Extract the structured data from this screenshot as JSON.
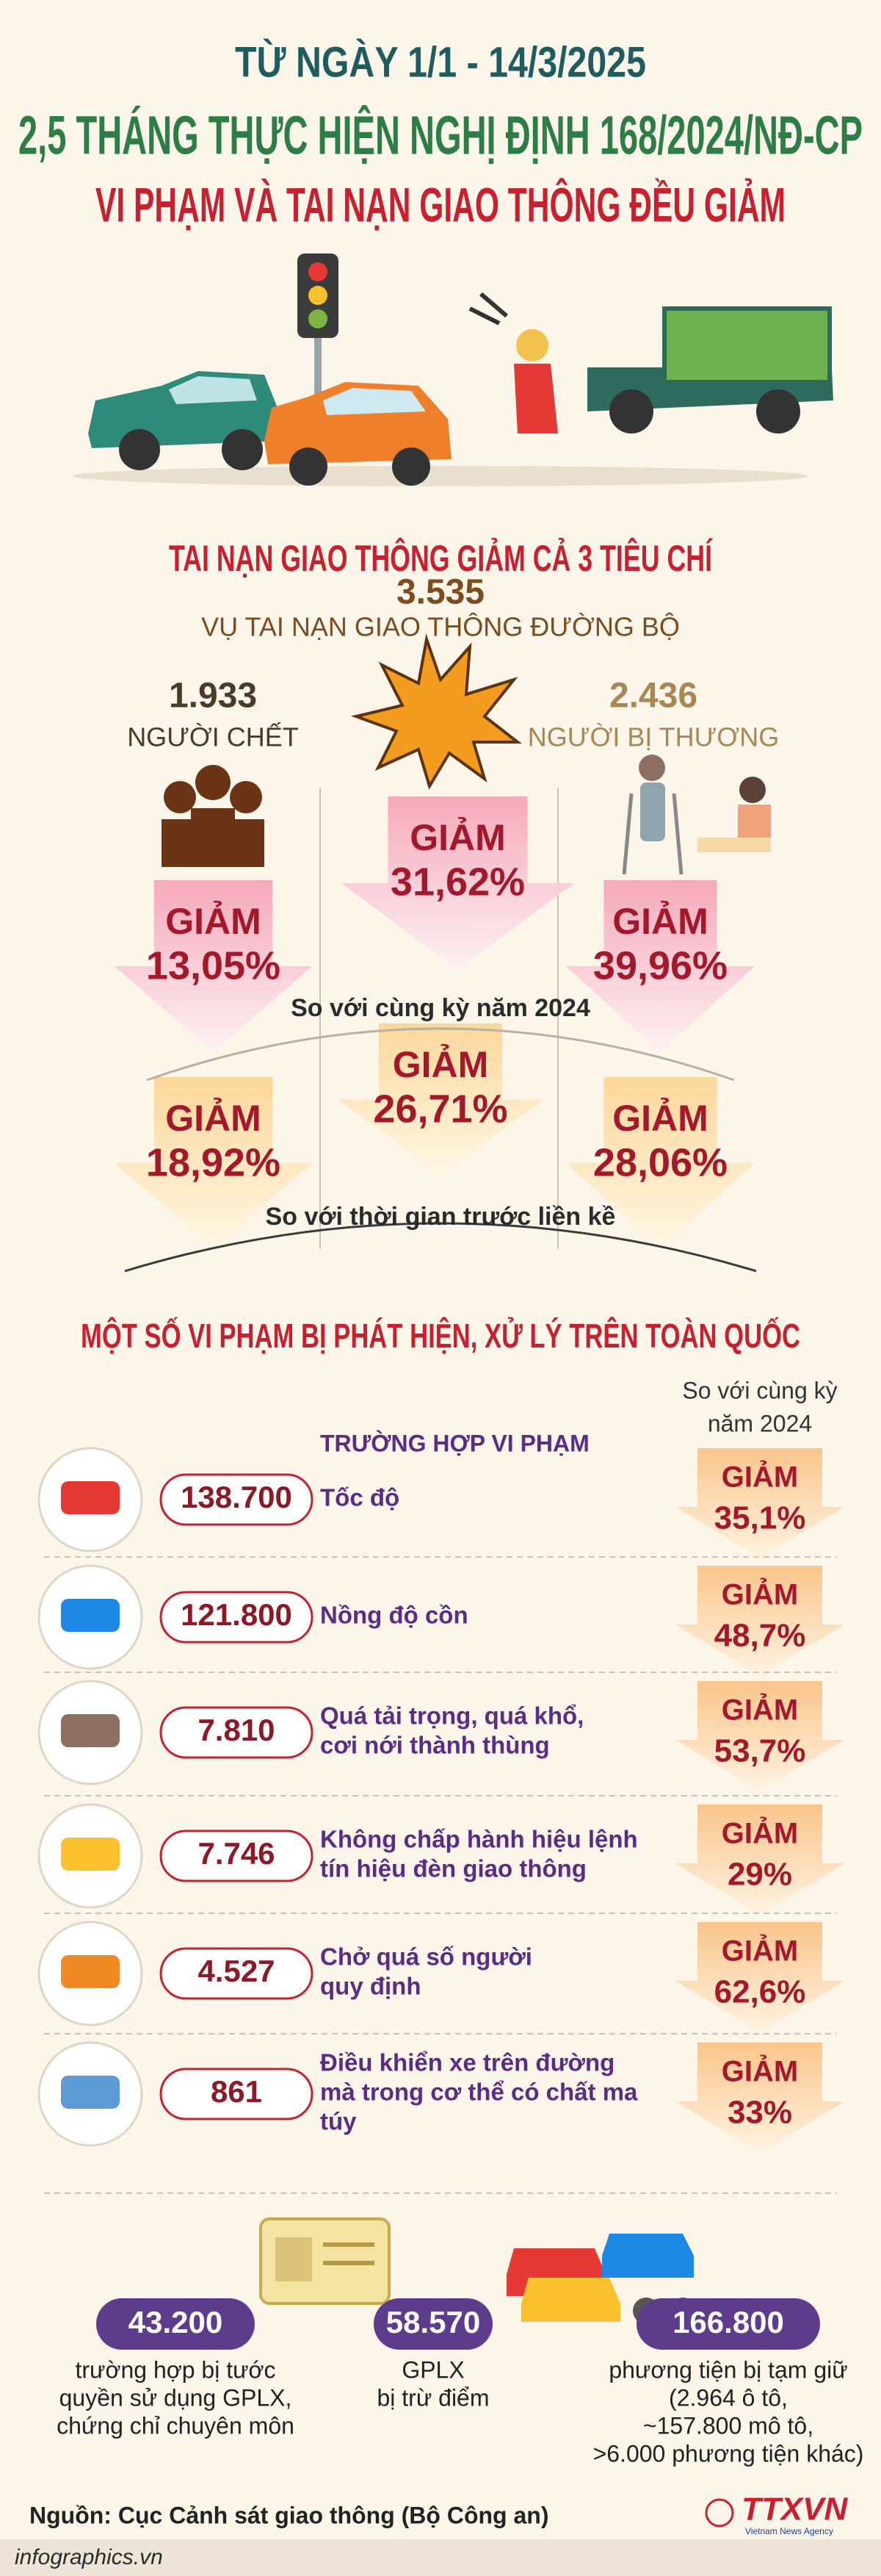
{
  "header": {
    "date": "TỪ NGÀY 1/1 - 14/3/2025",
    "title": "2,5 THÁNG THỰC HIỆN NGHỊ ĐỊNH 168/2024/NĐ-CP",
    "subtitle": "VI PHẠM VÀ TAI NẠN GIAO THÔNG ĐỀU GIẢM"
  },
  "accidents": {
    "heading": "TAI NẠN GIAO THÔNG GIẢM CẢ 3 TIÊU CHÍ",
    "total": {
      "value": "3.535",
      "label": "VỤ TAI NẠN GIAO THÔNG ĐƯỜNG BỘ",
      "yoy": {
        "label": "GIẢM",
        "value": "31,62%"
      },
      "prior": {
        "label": "GIẢM",
        "value": "26,71%"
      }
    },
    "deaths": {
      "value": "1.933",
      "label": "NGƯỜI CHẾT",
      "yoy": {
        "label": "GIẢM",
        "value": "13,05%"
      },
      "prior": {
        "label": "GIẢM",
        "value": "18,92%"
      }
    },
    "injuries": {
      "value": "2.436",
      "label": "NGƯỜI BỊ THƯƠNG",
      "yoy": {
        "label": "GIẢM",
        "value": "39,96%"
      },
      "prior": {
        "label": "GIẢM",
        "value": "28,06%"
      }
    },
    "yoy_label": "So với cùng kỳ năm 2024",
    "prior_label": "So với thời gian trước liền kề"
  },
  "violations": {
    "heading": "MỘT SỐ VI PHẠM BỊ PHÁT HIỆN, XỬ LÝ TRÊN TOÀN QUỐC",
    "column_header": "TRƯỜNG HỢP VI PHẠM",
    "compare_header": [
      "So với cùng kỳ",
      "năm 2024"
    ],
    "rows": [
      {
        "count": "138.700",
        "name": [
          "Tốc độ"
        ],
        "change": {
          "label": "GIẢM",
          "value": "35,1%"
        }
      },
      {
        "count": "121.800",
        "name": [
          "Nồng độ cồn"
        ],
        "change": {
          "label": "GIẢM",
          "value": "48,7%"
        }
      },
      {
        "count": "7.810",
        "name": [
          "Quá tải trọng, quá khổ,",
          "cơi nới thành thùng"
        ],
        "change": {
          "label": "GIẢM",
          "value": "53,7%"
        }
      },
      {
        "count": "7.746",
        "name": [
          "Không chấp hành hiệu lệnh",
          "tín hiệu đèn giao thông"
        ],
        "change": {
          "label": "GIẢM",
          "value": "29%"
        }
      },
      {
        "count": "4.527",
        "name": [
          "Chở quá số người",
          "quy định"
        ],
        "change": {
          "label": "GIẢM",
          "value": "62,6%"
        }
      },
      {
        "count": "861",
        "name": [
          "Điều khiển xe trên đường",
          "mà trong cơ thể có chất ma",
          "túy"
        ],
        "change": {
          "label": "GIẢM",
          "value": "33%"
        }
      }
    ]
  },
  "penalties": {
    "items": [
      {
        "count": "43.200",
        "lines": [
          "trường hợp bị tước",
          "quyền sử dụng GPLX,",
          "chứng chỉ chuyên môn"
        ]
      },
      {
        "count": "58.570",
        "lines": [
          "GPLX",
          "bị trừ điểm"
        ]
      },
      {
        "count": "166.800",
        "lines": [
          "phương tiện bị tạm giữ",
          "(2.964 ô tô,",
          "~157.800 mô tô,",
          ">6.000 phương tiện khác)"
        ]
      }
    ]
  },
  "footer": {
    "source": "Nguồn: Cục Cảnh sát giao thông (Bộ Công an)",
    "site": "infographics.vn",
    "brand": "TTXVN",
    "brand_tagline": "Vietnam News Agency"
  }
}
